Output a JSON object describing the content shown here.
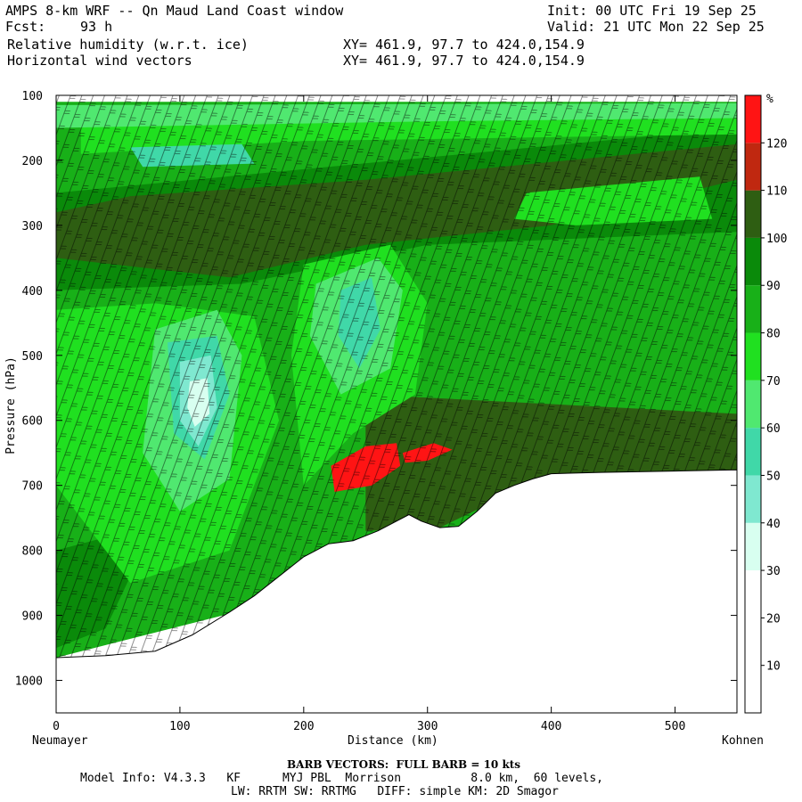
{
  "header": {
    "title": "AMPS 8-km WRF -- Qn Maud Land Coast window",
    "init": "Init: 00 UTC Fri 19 Sep 25",
    "fcst_label": "Fcst:",
    "fcst_value": "93 h",
    "valid": "Valid: 21 UTC Mon 22 Sep 25",
    "field1": "Relative humidity (w.r.t. ice)",
    "field2": "Horizontal wind vectors",
    "xy1": "XY= 461.9, 97.7 to 424.0,154.9",
    "xy2": "XY= 461.9, 97.7 to 424.0,154.9"
  },
  "chart_data": {
    "type": "heatmap",
    "title": "Relative humidity (w.r.t. ice) cross-section with horizontal wind barbs",
    "xlabel": "Distance (km)",
    "ylabel": "Pressure (hPa)",
    "x_left_label": "Neumayer",
    "x_right_label": "Kohnen",
    "xlim": [
      0,
      550
    ],
    "ylim": [
      100,
      1050
    ],
    "x_ticks": [
      0,
      100,
      200,
      300,
      400,
      500
    ],
    "y_ticks": [
      100,
      200,
      300,
      400,
      500,
      600,
      700,
      800,
      900,
      1000
    ],
    "colorbar": {
      "unit": "%",
      "levels": [
        10,
        20,
        30,
        40,
        50,
        60,
        70,
        80,
        90,
        100,
        110,
        120
      ],
      "colors": [
        "#ffffff",
        "#ffffff",
        "#ffffff",
        "#d8fff0",
        "#7fe8d0",
        "#40d8a8",
        "#50e870",
        "#20e020",
        "#18b018",
        "#0a8a0a",
        "#2e5e12",
        "#c02810",
        "#ff1414"
      ]
    },
    "terrain_hPa": [
      [
        0,
        965
      ],
      [
        40,
        962
      ],
      [
        80,
        955
      ],
      [
        110,
        930
      ],
      [
        140,
        895
      ],
      [
        160,
        870
      ],
      [
        180,
        840
      ],
      [
        200,
        810
      ],
      [
        220,
        790
      ],
      [
        240,
        785
      ],
      [
        260,
        770
      ],
      [
        275,
        755
      ],
      [
        285,
        745
      ],
      [
        295,
        755
      ],
      [
        310,
        765
      ],
      [
        325,
        763
      ],
      [
        340,
        740
      ],
      [
        355,
        712
      ],
      [
        370,
        700
      ],
      [
        385,
        690
      ],
      [
        400,
        682
      ],
      [
        440,
        680
      ],
      [
        500,
        678
      ],
      [
        550,
        676
      ]
    ],
    "rh_regions": [
      {
        "pct": 85,
        "points": [
          [
            0,
            110
          ],
          [
            550,
            110
          ],
          [
            550,
            700
          ],
          [
            0,
            965
          ]
        ]
      },
      {
        "pct": 95,
        "points": [
          [
            0,
            250
          ],
          [
            550,
            150
          ],
          [
            550,
            310
          ],
          [
            300,
            330
          ],
          [
            150,
            390
          ],
          [
            0,
            400
          ]
        ]
      },
      {
        "pct": 105,
        "points": [
          [
            60,
            255
          ],
          [
            250,
            230
          ],
          [
            550,
            175
          ],
          [
            550,
            230
          ],
          [
            400,
            300
          ],
          [
            250,
            330
          ],
          [
            140,
            380
          ],
          [
            0,
            350
          ],
          [
            0,
            280
          ]
        ]
      },
      {
        "pct": 105,
        "points": [
          [
            250,
            560
          ],
          [
            550,
            590
          ],
          [
            550,
            676
          ],
          [
            400,
            682
          ],
          [
            310,
            765
          ],
          [
            250,
            770
          ]
        ]
      },
      {
        "pct": 95,
        "points": [
          [
            0,
            800
          ],
          [
            40,
            780
          ],
          [
            60,
            840
          ],
          [
            40,
            920
          ],
          [
            0,
            950
          ]
        ]
      },
      {
        "pct": 75,
        "points": [
          [
            0,
            430
          ],
          [
            80,
            420
          ],
          [
            160,
            440
          ],
          [
            180,
            600
          ],
          [
            140,
            800
          ],
          [
            60,
            850
          ],
          [
            0,
            700
          ]
        ]
      },
      {
        "pct": 75,
        "points": [
          [
            200,
            360
          ],
          [
            270,
            330
          ],
          [
            300,
            420
          ],
          [
            290,
            560
          ],
          [
            240,
            620
          ],
          [
            200,
            700
          ],
          [
            190,
            500
          ]
        ]
      },
      {
        "pct": 75,
        "points": [
          [
            20,
            130
          ],
          [
            550,
            120
          ],
          [
            550,
            160
          ],
          [
            200,
            170
          ],
          [
            20,
            190
          ]
        ]
      },
      {
        "pct": 65,
        "points": [
          [
            80,
            460
          ],
          [
            130,
            430
          ],
          [
            150,
            500
          ],
          [
            140,
            690
          ],
          [
            100,
            740
          ],
          [
            70,
            650
          ]
        ]
      },
      {
        "pct": 65,
        "points": [
          [
            210,
            390
          ],
          [
            260,
            350
          ],
          [
            280,
            400
          ],
          [
            270,
            520
          ],
          [
            230,
            560
          ],
          [
            205,
            470
          ]
        ]
      },
      {
        "pct": 65,
        "points": [
          [
            0,
            115
          ],
          [
            550,
            112
          ],
          [
            550,
            135
          ],
          [
            300,
            140
          ],
          [
            0,
            150
          ]
        ]
      },
      {
        "pct": 75,
        "points": [
          [
            380,
            250
          ],
          [
            520,
            225
          ],
          [
            530,
            290
          ],
          [
            420,
            300
          ],
          [
            370,
            290
          ]
        ]
      },
      {
        "pct": 55,
        "points": [
          [
            90,
            480
          ],
          [
            130,
            470
          ],
          [
            140,
            560
          ],
          [
            120,
            660
          ],
          [
            95,
            620
          ]
        ]
      },
      {
        "pct": 45,
        "points": [
          [
            100,
            510
          ],
          [
            125,
            500
          ],
          [
            130,
            580
          ],
          [
            115,
            640
          ],
          [
            100,
            600
          ]
        ]
      },
      {
        "pct": 35,
        "points": [
          [
            108,
            540
          ],
          [
            122,
            535
          ],
          [
            124,
            590
          ],
          [
            112,
            610
          ],
          [
            106,
            580
          ]
        ]
      },
      {
        "pct": 55,
        "points": [
          [
            230,
            400
          ],
          [
            255,
            380
          ],
          [
            262,
            460
          ],
          [
            245,
            520
          ],
          [
            228,
            470
          ]
        ]
      },
      {
        "pct": 55,
        "points": [
          [
            60,
            180
          ],
          [
            150,
            175
          ],
          [
            160,
            205
          ],
          [
            70,
            210
          ]
        ]
      },
      {
        "pct": 125,
        "points": [
          [
            222,
            670
          ],
          [
            250,
            640
          ],
          [
            275,
            635
          ],
          [
            278,
            670
          ],
          [
            255,
            700
          ],
          [
            225,
            710
          ]
        ]
      },
      {
        "pct": 125,
        "points": [
          [
            280,
            650
          ],
          [
            305,
            635
          ],
          [
            320,
            645
          ],
          [
            300,
            662
          ],
          [
            282,
            665
          ]
        ]
      }
    ],
    "barb_note": "BARB VECTORS: FULL BARB = 10 kts"
  },
  "footer": {
    "barb": "BARB VECTORS:  FULL BARB = 10 kts",
    "model_info": "Model Info: V4.3.3   KF      MYJ PBL  Morrison          8.0 km,  60 levels,",
    "model_info2": "LW: RRTM SW: RRTMG   DIFF: simple KM: 2D Smagor"
  }
}
